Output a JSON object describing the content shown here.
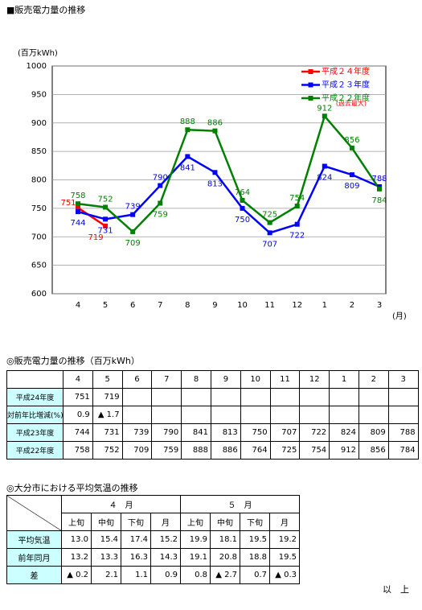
{
  "title": "■販売電力量の推移",
  "chart_data": {
    "type": "line",
    "y_label": "(百万kWh)",
    "x_label": "(月)",
    "categories": [
      "4",
      "5",
      "6",
      "7",
      "8",
      "9",
      "10",
      "11",
      "12",
      "1",
      "2",
      "3"
    ],
    "ylim": [
      600,
      1000
    ],
    "yticks": [
      600,
      650,
      700,
      750,
      800,
      850,
      900,
      950,
      1000
    ],
    "grid": true,
    "legend_position": "upper right",
    "annotation": "(過去最大)",
    "series": [
      {
        "name": "平成２４年度",
        "color": "#ff0000",
        "values": [
          751,
          719,
          null,
          null,
          null,
          null,
          null,
          null,
          null,
          null,
          null,
          null
        ]
      },
      {
        "name": "平成２３年度",
        "color": "#0000ff",
        "values": [
          744,
          731,
          739,
          790,
          841,
          813,
          750,
          707,
          722,
          824,
          809,
          788
        ]
      },
      {
        "name": "平成２２年度",
        "color": "#008000",
        "values": [
          758,
          752,
          709,
          759,
          888,
          886,
          764,
          725,
          754,
          912,
          856,
          784
        ]
      }
    ]
  },
  "sales_table": {
    "title": "◎販売電力量の推移（百万kWh）",
    "header": [
      "4",
      "5",
      "6",
      "7",
      "8",
      "9",
      "10",
      "11",
      "12",
      "1",
      "2",
      "3"
    ],
    "rows": [
      {
        "label": "平成24年度",
        "cells": [
          "751",
          "719",
          null,
          null,
          null,
          null,
          null,
          null,
          null,
          null,
          null,
          null
        ]
      },
      {
        "label": "対前年比増減(%)",
        "cells": [
          "0.9",
          "▲ 1.7",
          null,
          null,
          null,
          null,
          null,
          null,
          null,
          null,
          null,
          null
        ]
      },
      {
        "label": "平成23年度",
        "cells": [
          "744",
          "731",
          "739",
          "790",
          "841",
          "813",
          "750",
          "707",
          "722",
          "824",
          "809",
          "788"
        ]
      },
      {
        "label": "平成22年度",
        "cells": [
          "758",
          "752",
          "709",
          "759",
          "888",
          "886",
          "764",
          "725",
          "754",
          "912",
          "856",
          "784"
        ]
      }
    ]
  },
  "temperature_table": {
    "title": "◎大分市における平均気温の推移",
    "months": [
      "４　月",
      "５　月"
    ],
    "periods": [
      "上旬",
      "中旬",
      "下旬",
      "月",
      "上旬",
      "中旬",
      "下旬",
      "月"
    ],
    "rows": [
      {
        "label": "平均気温",
        "cells": [
          "13.0",
          "15.4",
          "17.4",
          "15.2",
          "19.9",
          "18.1",
          "19.5",
          "19.2"
        ]
      },
      {
        "label": "前年同月",
        "cells": [
          "13.2",
          "13.3",
          "16.3",
          "14.3",
          "19.1",
          "20.8",
          "18.8",
          "19.5"
        ]
      },
      {
        "label": "差",
        "cells": [
          "▲ 0.2",
          "2.1",
          "1.1",
          "0.9",
          "0.8",
          "▲ 2.7",
          "0.7",
          "▲ 0.3"
        ]
      }
    ]
  },
  "footer": "以　上"
}
